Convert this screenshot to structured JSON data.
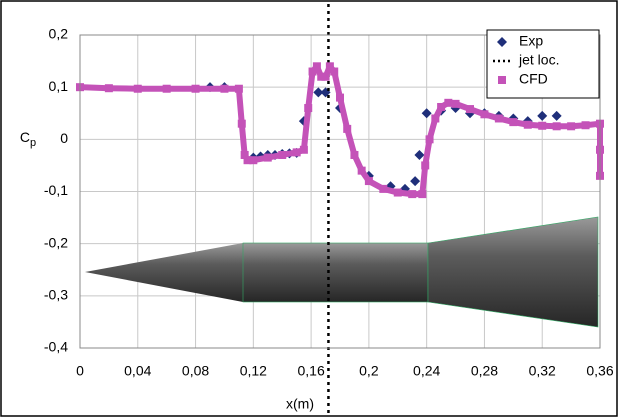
{
  "chart_data": {
    "type": "scatter",
    "x_label": "x(m)",
    "y_label": "Cp",
    "xlim": [
      0,
      0.36
    ],
    "ylim": [
      -0.4,
      0.2
    ],
    "xticks": [
      0,
      {
        "value": 0.04,
        "label": "0,04"
      },
      {
        "value": 0.08,
        "label": "0,08"
      },
      {
        "value": 0.12,
        "label": "0,12"
      },
      {
        "value": 0.16,
        "label": "0,16"
      },
      {
        "value": 0.2,
        "label": "0,2"
      },
      {
        "value": 0.24,
        "label": "0,24"
      },
      {
        "value": 0.28,
        "label": "0,28"
      },
      {
        "value": 0.32,
        "label": "0,32"
      },
      {
        "value": 0.36,
        "label": "0,36"
      }
    ],
    "yticks": [
      {
        "value": 0.2,
        "label": "0,2"
      },
      {
        "value": 0.1,
        "label": "0,1"
      },
      0,
      {
        "value": -0.1,
        "label": "-0,1"
      },
      {
        "value": -0.2,
        "label": "-0,2"
      },
      {
        "value": -0.3,
        "label": "-0,3"
      },
      {
        "value": -0.4,
        "label": "-0,4"
      }
    ],
    "grid": true,
    "legend": "top-right",
    "series": [
      {
        "name": "Exp",
        "color": "#1f2f7a",
        "marker": "diamond",
        "x": [
          0.09,
          0.1,
          0.12,
          0.125,
          0.13,
          0.135,
          0.14,
          0.145,
          0.15,
          0.155,
          0.165,
          0.17,
          0.18,
          0.2,
          0.215,
          0.225,
          0.232,
          0.235,
          0.24,
          0.25,
          0.26,
          0.27,
          0.28,
          0.29,
          0.3,
          0.31,
          0.32,
          0.33
        ],
        "values": [
          0.1,
          0.1,
          -0.035,
          -0.033,
          -0.03,
          -0.03,
          -0.028,
          -0.027,
          -0.026,
          0.035,
          0.09,
          0.09,
          0.06,
          -0.07,
          -0.09,
          -0.095,
          -0.08,
          -0.03,
          0.05,
          0.055,
          0.06,
          0.05,
          0.05,
          0.045,
          0.04,
          0.035,
          0.045,
          0.045
        ]
      },
      {
        "name": "jet loc.",
        "color": "#000000",
        "marker": "vline",
        "x": [
          0.172
        ]
      },
      {
        "name": "CFD",
        "color": "#c452b8",
        "marker": "square",
        "x": [
          0,
          0.02,
          0.04,
          0.06,
          0.08,
          0.1,
          0.11,
          0.112,
          0.114,
          0.116,
          0.12,
          0.13,
          0.14,
          0.15,
          0.155,
          0.158,
          0.161,
          0.164,
          0.167,
          0.17,
          0.173,
          0.176,
          0.18,
          0.185,
          0.19,
          0.195,
          0.2,
          0.21,
          0.22,
          0.23,
          0.237,
          0.239,
          0.242,
          0.246,
          0.25,
          0.255,
          0.26,
          0.27,
          0.28,
          0.29,
          0.3,
          0.31,
          0.32,
          0.33,
          0.34,
          0.35,
          0.36,
          0.36,
          0.36
        ],
        "values": [
          0.1,
          0.098,
          0.097,
          0.097,
          0.097,
          0.097,
          0.097,
          0.03,
          -0.03,
          -0.04,
          -0.04,
          -0.035,
          -0.03,
          -0.025,
          -0.02,
          0.06,
          0.13,
          0.14,
          0.12,
          0.12,
          0.14,
          0.13,
          0.08,
          0.02,
          -0.03,
          -0.06,
          -0.08,
          -0.095,
          -0.102,
          -0.105,
          -0.105,
          -0.05,
          0.0,
          0.04,
          0.062,
          0.07,
          0.068,
          0.058,
          0.048,
          0.04,
          0.033,
          0.028,
          0.026,
          0.025,
          0.025,
          0.027,
          0.03,
          -0.02,
          -0.07
        ]
      }
    ]
  }
}
